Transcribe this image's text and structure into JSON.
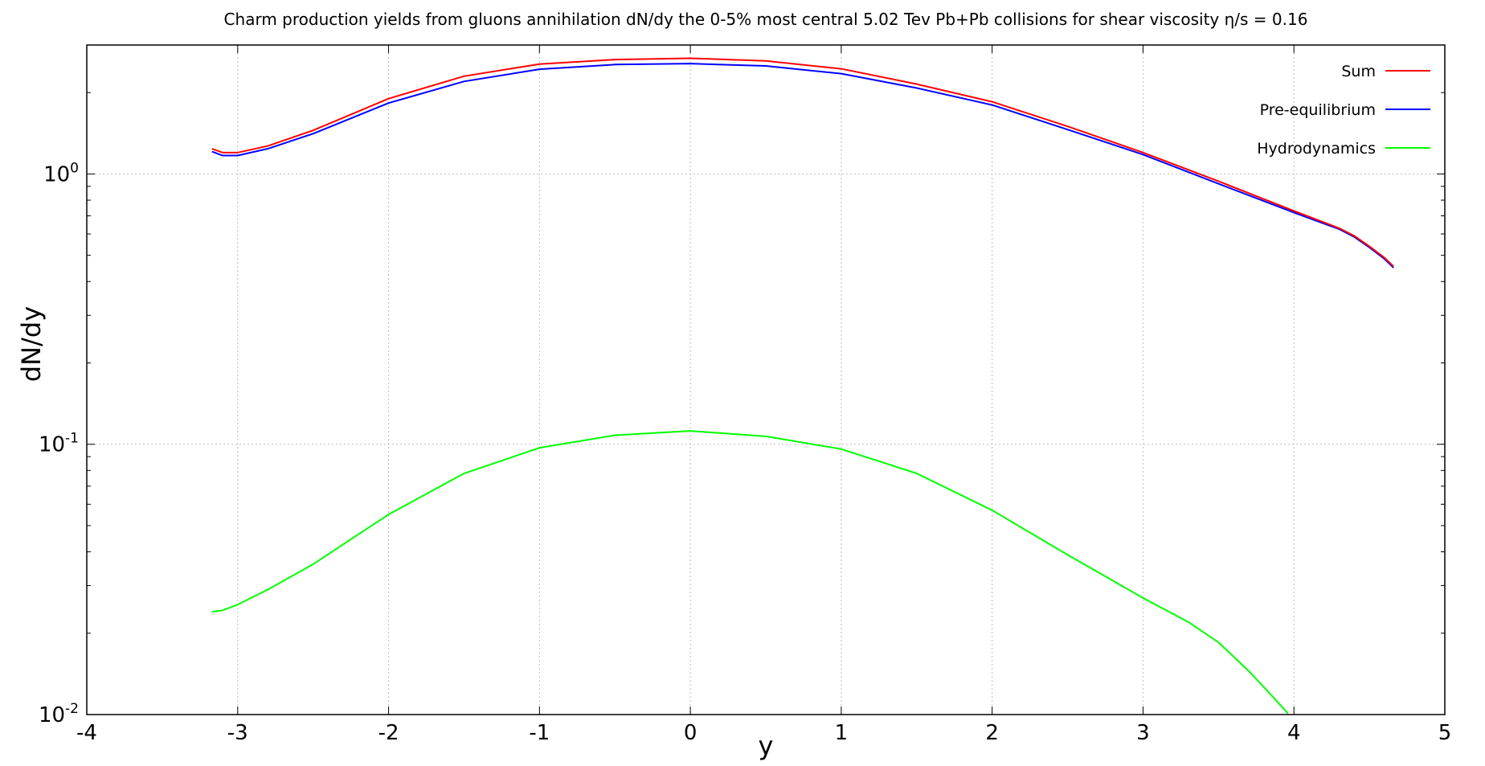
{
  "chart_data": {
    "type": "line",
    "title": "Charm production yields from gluons annihilation dN/dy the 0-5% most central 5.02 Tev Pb+Pb collisions for shear viscosity η/s = 0.16",
    "xlabel": "y",
    "ylabel": "dN/dy",
    "xlim": [
      -4,
      5
    ],
    "ylim": [
      0.01,
      3.0
    ],
    "yscale": "log",
    "grid": true,
    "legend_position": "top-right",
    "x_ticks": [
      "-4",
      "-3",
      "-2",
      "-1",
      "0",
      "1",
      "2",
      "3",
      "4",
      "5"
    ],
    "y_ticks": [
      {
        "base": "10",
        "exp": "-2",
        "value": 0.01
      },
      {
        "base": "10",
        "exp": "-1",
        "value": 0.1
      },
      {
        "base": "10",
        "exp": "0",
        "value": 1
      }
    ],
    "series": [
      {
        "name": "Sum",
        "color": "#ff0000",
        "x": [
          -3.17,
          -3.1,
          -3.0,
          -2.8,
          -2.5,
          -2.0,
          -1.5,
          -1.0,
          -0.5,
          0.0,
          0.5,
          1.0,
          1.5,
          2.0,
          2.5,
          3.0,
          3.5,
          4.0,
          4.3,
          4.4,
          4.5,
          4.6,
          4.66
        ],
        "values": [
          1.24,
          1.2,
          1.2,
          1.27,
          1.45,
          1.9,
          2.3,
          2.55,
          2.65,
          2.68,
          2.62,
          2.45,
          2.15,
          1.85,
          1.5,
          1.2,
          0.94,
          0.73,
          0.63,
          0.59,
          0.54,
          0.49,
          0.455
        ]
      },
      {
        "name": "Pre-equilibrium",
        "color": "#0000ff",
        "x": [
          -3.17,
          -3.1,
          -3.0,
          -2.8,
          -2.5,
          -2.0,
          -1.5,
          -1.0,
          -0.5,
          0.0,
          0.5,
          1.0,
          1.5,
          2.0,
          2.5,
          3.0,
          3.5,
          4.0,
          4.3,
          4.4,
          4.5,
          4.6,
          4.66
        ],
        "values": [
          1.21,
          1.17,
          1.17,
          1.24,
          1.41,
          1.83,
          2.2,
          2.44,
          2.54,
          2.56,
          2.51,
          2.35,
          2.08,
          1.8,
          1.46,
          1.18,
          0.92,
          0.72,
          0.625,
          0.585,
          0.535,
          0.485,
          0.45
        ]
      },
      {
        "name": "Hydrodynamics",
        "color": "#00ff00",
        "x": [
          -3.17,
          -3.1,
          -3.0,
          -2.8,
          -2.5,
          -2.0,
          -1.5,
          -1.0,
          -0.5,
          0.0,
          0.5,
          1.0,
          1.5,
          2.0,
          2.5,
          3.0,
          3.3,
          3.5,
          3.7,
          3.85,
          3.96
        ],
        "values": [
          0.024,
          0.0243,
          0.0255,
          0.029,
          0.036,
          0.055,
          0.078,
          0.097,
          0.108,
          0.112,
          0.107,
          0.096,
          0.078,
          0.057,
          0.039,
          0.027,
          0.022,
          0.0185,
          0.0145,
          0.0118,
          0.0101
        ]
      }
    ]
  }
}
